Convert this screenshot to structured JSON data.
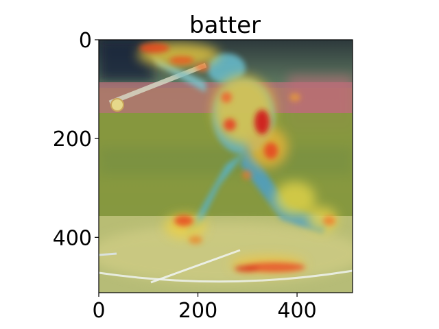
{
  "chart_data": {
    "type": "heatmap",
    "title": "batter",
    "xlabel": "",
    "ylabel": "",
    "xlim": [
      0,
      512
    ],
    "ylim": [
      512,
      0
    ],
    "x_ticks": [
      "0",
      "200",
      "400"
    ],
    "y_ticks": [
      "0",
      "200",
      "400"
    ],
    "x_tick_values": [
      0,
      200,
      400
    ],
    "y_tick_values": [
      0,
      200,
      400
    ],
    "colormap": "jet",
    "colors": {
      "background": "#ffffff",
      "axis": "#000000",
      "sky": "#2c3a4a",
      "wall": "#b86a6e",
      "field": "#8f9a3c",
      "dirt": "#c7bf6a",
      "player": "#5fb7c9"
    }
  }
}
